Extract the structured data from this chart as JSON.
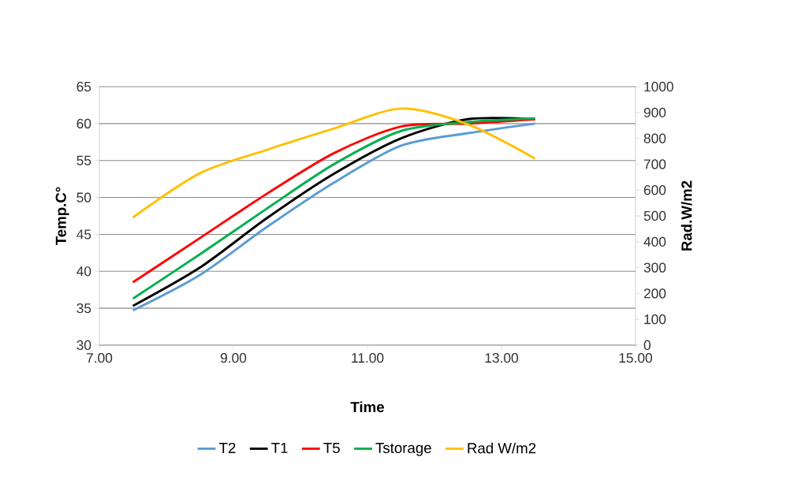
{
  "chart_data": {
    "type": "line",
    "xlabel": "Time",
    "ylabel": "Temp.C°",
    "y2label": "Rad.W/m2",
    "x": [
      7.5,
      8.5,
      9.5,
      10.5,
      11.5,
      12.5,
      13.5
    ],
    "series": [
      {
        "name": "T2",
        "color": "#5b9bd5",
        "values": [
          34.7,
          39.5,
          46,
          52,
          57,
          58.7,
          60
        ]
      },
      {
        "name": "T1",
        "color": "#000000",
        "values": [
          35.3,
          40.5,
          47.2,
          53.2,
          58,
          60.6,
          60.6
        ]
      },
      {
        "name": "T5",
        "color": "#ff0000",
        "values": [
          38.5,
          44.5,
          50.5,
          56,
          59.6,
          60,
          60.6
        ]
      },
      {
        "name": "Tstorage",
        "color": "#00b050",
        "values": [
          36.3,
          42.3,
          48.5,
          54.5,
          59,
          60.2,
          60.7
        ]
      },
      {
        "name": "Rad W/m2",
        "color": "#ffc000",
        "axis": "y2",
        "values": [
          494,
          665,
          756,
          838,
          915,
          854,
          722
        ]
      }
    ],
    "xlim": [
      7,
      15
    ],
    "xticks": [
      {
        "value": 7,
        "label": "7.00"
      },
      {
        "value": 9,
        "label": "9.00"
      },
      {
        "value": 11,
        "label": "11.00"
      },
      {
        "value": 13,
        "label": "13.00"
      },
      {
        "value": 15,
        "label": "15.00"
      }
    ],
    "ylim": [
      30,
      65
    ],
    "yticks": [
      30,
      35,
      40,
      45,
      50,
      55,
      60,
      65
    ],
    "y2lim": [
      0,
      1000
    ],
    "y2ticks": [
      0,
      100,
      200,
      300,
      400,
      500,
      600,
      700,
      800,
      900,
      1000
    ],
    "grid": "y",
    "legend": "bottom",
    "marker": "none",
    "line_style": "solid"
  }
}
